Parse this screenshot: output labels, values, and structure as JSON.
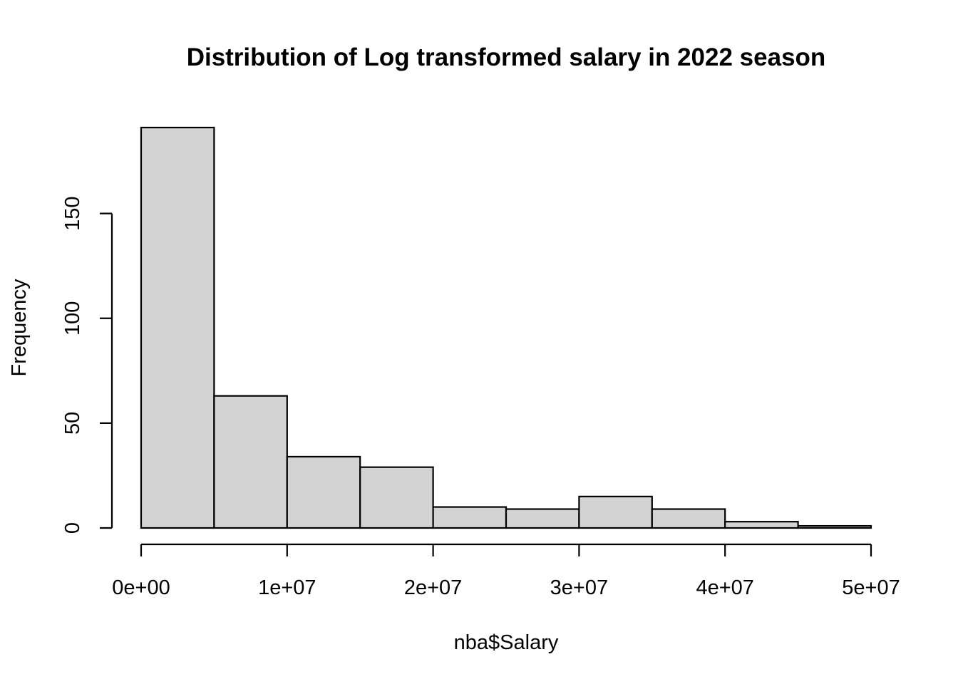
{
  "chart_data": {
    "type": "bar",
    "title": "Distribution of Log transformed salary in 2022 season",
    "xlabel": "nba$Salary",
    "ylabel": "Frequency",
    "bin_edges": [
      0,
      5000000,
      10000000,
      15000000,
      20000000,
      25000000,
      30000000,
      35000000,
      40000000,
      45000000,
      50000000
    ],
    "values": [
      191,
      63,
      34,
      29,
      10,
      9,
      15,
      9,
      3,
      1
    ],
    "xlim": [
      0,
      50000000
    ],
    "ylim": [
      0,
      191
    ],
    "x_ticks": [
      {
        "value": 0,
        "label": "0e+00"
      },
      {
        "value": 10000000,
        "label": "1e+07"
      },
      {
        "value": 20000000,
        "label": "2e+07"
      },
      {
        "value": 30000000,
        "label": "3e+07"
      },
      {
        "value": 40000000,
        "label": "4e+07"
      },
      {
        "value": 50000000,
        "label": "5e+07"
      }
    ],
    "y_ticks": [
      {
        "value": 0,
        "label": "0"
      },
      {
        "value": 50,
        "label": "50"
      },
      {
        "value": 100,
        "label": "100"
      },
      {
        "value": 150,
        "label": "150"
      }
    ],
    "grid": false,
    "colors": {
      "bar_fill": "#d3d3d3",
      "bar_stroke": "#000000"
    }
  }
}
